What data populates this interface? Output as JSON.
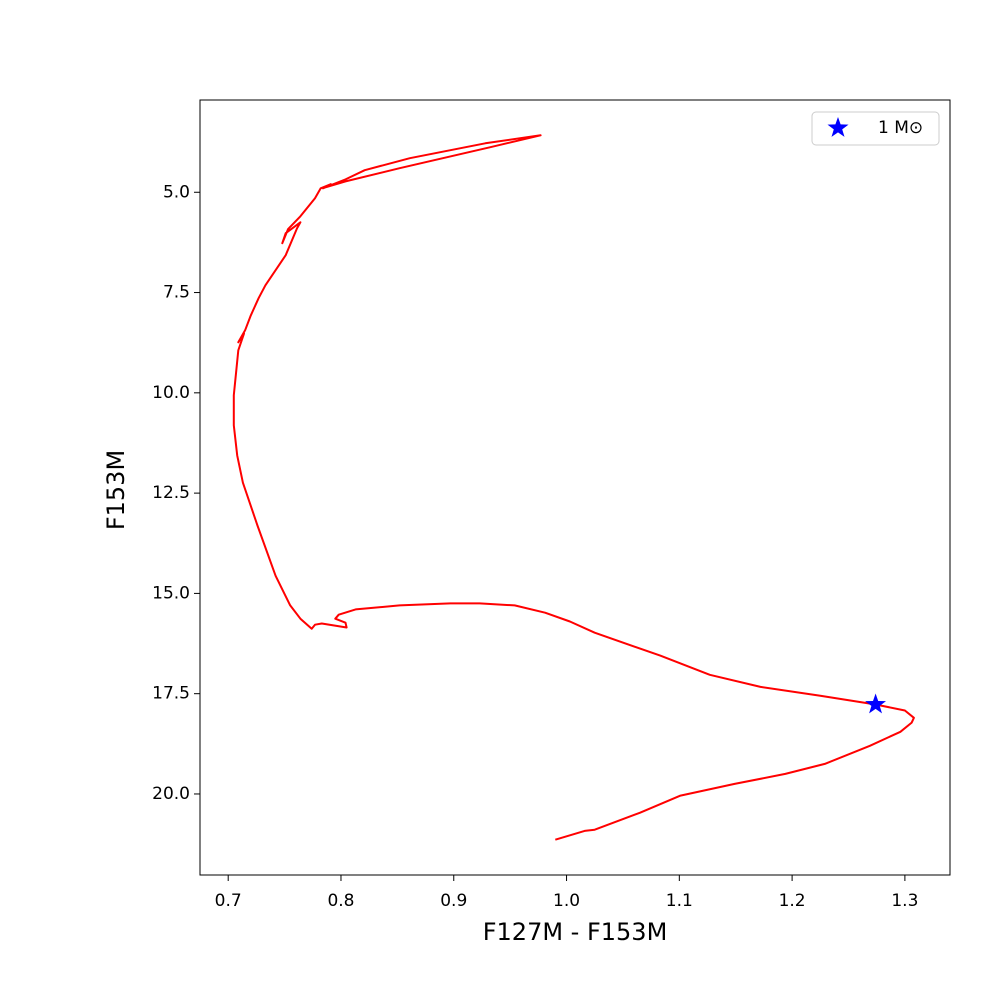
{
  "chart_data": {
    "type": "line",
    "xlabel": "F127M - F153M",
    "ylabel": "F153M",
    "xlim": [
      0.675,
      1.34
    ],
    "ylim": [
      22.02,
      2.7
    ],
    "xticks": [
      0.7,
      0.8,
      0.9,
      {
        "value": 1,
        "label": "1.0"
      },
      1.1,
      1.2,
      1.3
    ],
    "yticks": [
      {
        "value": 5,
        "label": "5.0"
      },
      7.5,
      {
        "value": 10,
        "label": "10.0"
      },
      12.5,
      {
        "value": 15,
        "label": "15.0"
      },
      17.5,
      {
        "value": 20,
        "label": "20.0"
      }
    ],
    "legend": "upper right",
    "series": [
      {
        "type": "line",
        "color": "#ff0000",
        "x": [
          0.99,
          1.016,
          1.025,
          1.065,
          1.101,
          1.149,
          1.194,
          1.229,
          1.269,
          1.296,
          1.306,
          1.308,
          1.3,
          1.274,
          1.225,
          1.172,
          1.127,
          1.083,
          1.025,
          1.003,
          0.981,
          0.954,
          0.923,
          0.897,
          0.852,
          0.813,
          0.798,
          0.795,
          0.804,
          0.805,
          0.783,
          0.777,
          0.774,
          0.764,
          0.755,
          0.742,
          0.726,
          0.713,
          0.708,
          0.705,
          0.705,
          0.707,
          0.709,
          0.714,
          0.709,
          0.715,
          0.72,
          0.727,
          0.733,
          0.751,
          0.761,
          0.764,
          0.751,
          0.748,
          0.753,
          0.764,
          0.777,
          0.782,
          0.791,
          0.784,
          0.804,
          0.821,
          0.861,
          0.928,
          0.977,
          0.932,
          0.852,
          0.804,
          0.786
        ],
        "values": [
          21.14,
          20.92,
          20.89,
          20.47,
          20.04,
          19.75,
          19.5,
          19.25,
          18.8,
          18.45,
          18.22,
          18.1,
          17.92,
          17.77,
          17.55,
          17.33,
          17.03,
          16.55,
          15.98,
          15.7,
          15.48,
          15.3,
          15.25,
          15.25,
          15.3,
          15.4,
          15.53,
          15.63,
          15.73,
          15.85,
          15.75,
          15.78,
          15.88,
          15.63,
          15.3,
          14.56,
          13.31,
          12.24,
          11.56,
          10.81,
          10.06,
          9.49,
          8.94,
          8.52,
          8.74,
          8.44,
          8.07,
          7.64,
          7.32,
          6.57,
          5.9,
          5.75,
          6.02,
          6.27,
          5.92,
          5.6,
          5.15,
          4.9,
          4.8,
          4.9,
          4.68,
          4.45,
          4.15,
          3.78,
          3.58,
          3.88,
          4.4,
          4.73,
          4.88
        ]
      },
      {
        "type": "scatter",
        "name": "1 M⊙",
        "color": "#0000ff",
        "marker": "star",
        "x": [
          1.274
        ],
        "values": [
          17.77
        ]
      }
    ]
  }
}
